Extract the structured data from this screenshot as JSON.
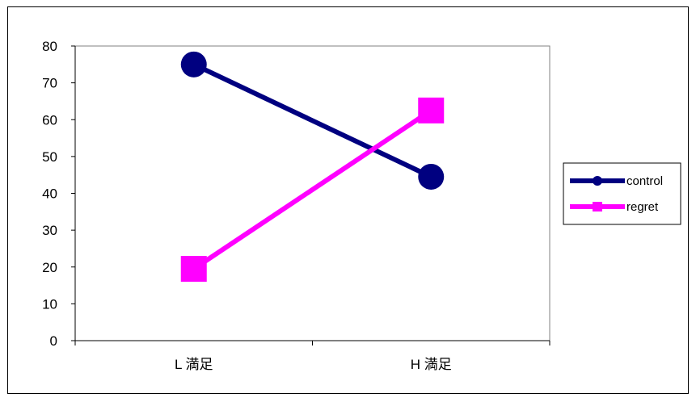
{
  "chart_data": {
    "type": "line",
    "categories": [
      "L  満足",
      "H 満足"
    ],
    "ylim": [
      0,
      80
    ],
    "yticks": [
      0,
      10,
      20,
      30,
      40,
      50,
      60,
      70,
      80
    ],
    "legend_position": "right",
    "series": [
      {
        "name": "control",
        "values": [
          75,
          44.5
        ],
        "color": "#000080",
        "marker": "circle"
      },
      {
        "name": "regret",
        "values": [
          19.5,
          62.5
        ],
        "color": "#ff00ff",
        "marker": "square"
      }
    ]
  }
}
